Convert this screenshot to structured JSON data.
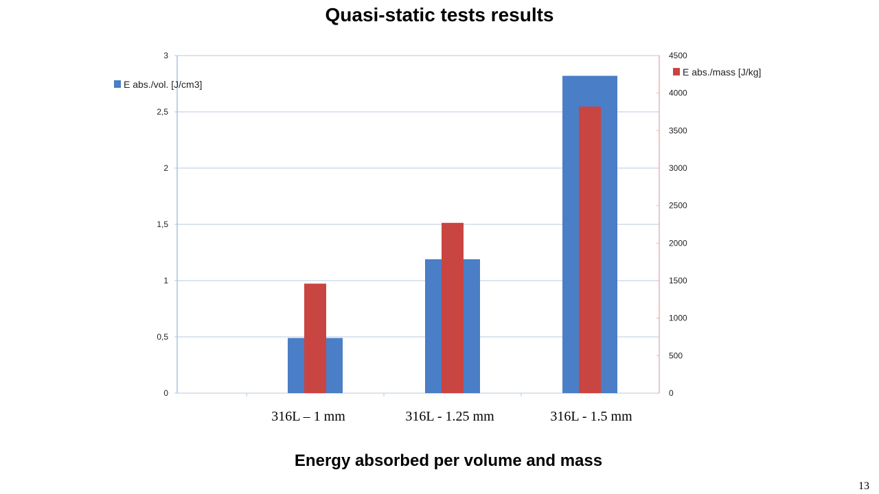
{
  "slide": {
    "title": "Quasi-static tests results",
    "subtitle": "Energy absorbed per volume and mass",
    "page_number": "13"
  },
  "chart_data": {
    "type": "bar",
    "categories": [
      "316L – 1 mm",
      "316L - 1.25 mm",
      "316L - 1.5 mm"
    ],
    "series": [
      {
        "name": "E abs./vol. [J/cm3]",
        "axis": "left",
        "color": "#4a7ec6",
        "values": [
          0.49,
          1.19,
          2.82
        ]
      },
      {
        "name": "E abs./mass [J/kg]",
        "axis": "right",
        "color": "#c94542",
        "values": [
          1460,
          2270,
          3820
        ]
      }
    ],
    "left_axis": {
      "ylim": [
        0,
        3
      ],
      "ticks": [
        0,
        0.5,
        1,
        1.5,
        2,
        2.5,
        3
      ],
      "tick_labels": [
        "0",
        "0,5",
        "1",
        "1,5",
        "2",
        "2,5",
        "3"
      ]
    },
    "right_axis": {
      "ylim": [
        0,
        4500
      ],
      "ticks": [
        0,
        500,
        1000,
        1500,
        2000,
        2500,
        3000,
        3500,
        4000,
        4500
      ],
      "tick_labels": [
        "0",
        "500",
        "1000",
        "1500",
        "2000",
        "2500",
        "3000",
        "3500",
        "4000",
        "4500"
      ]
    },
    "grid": true,
    "legend": [
      "top-left",
      "top-right"
    ]
  }
}
